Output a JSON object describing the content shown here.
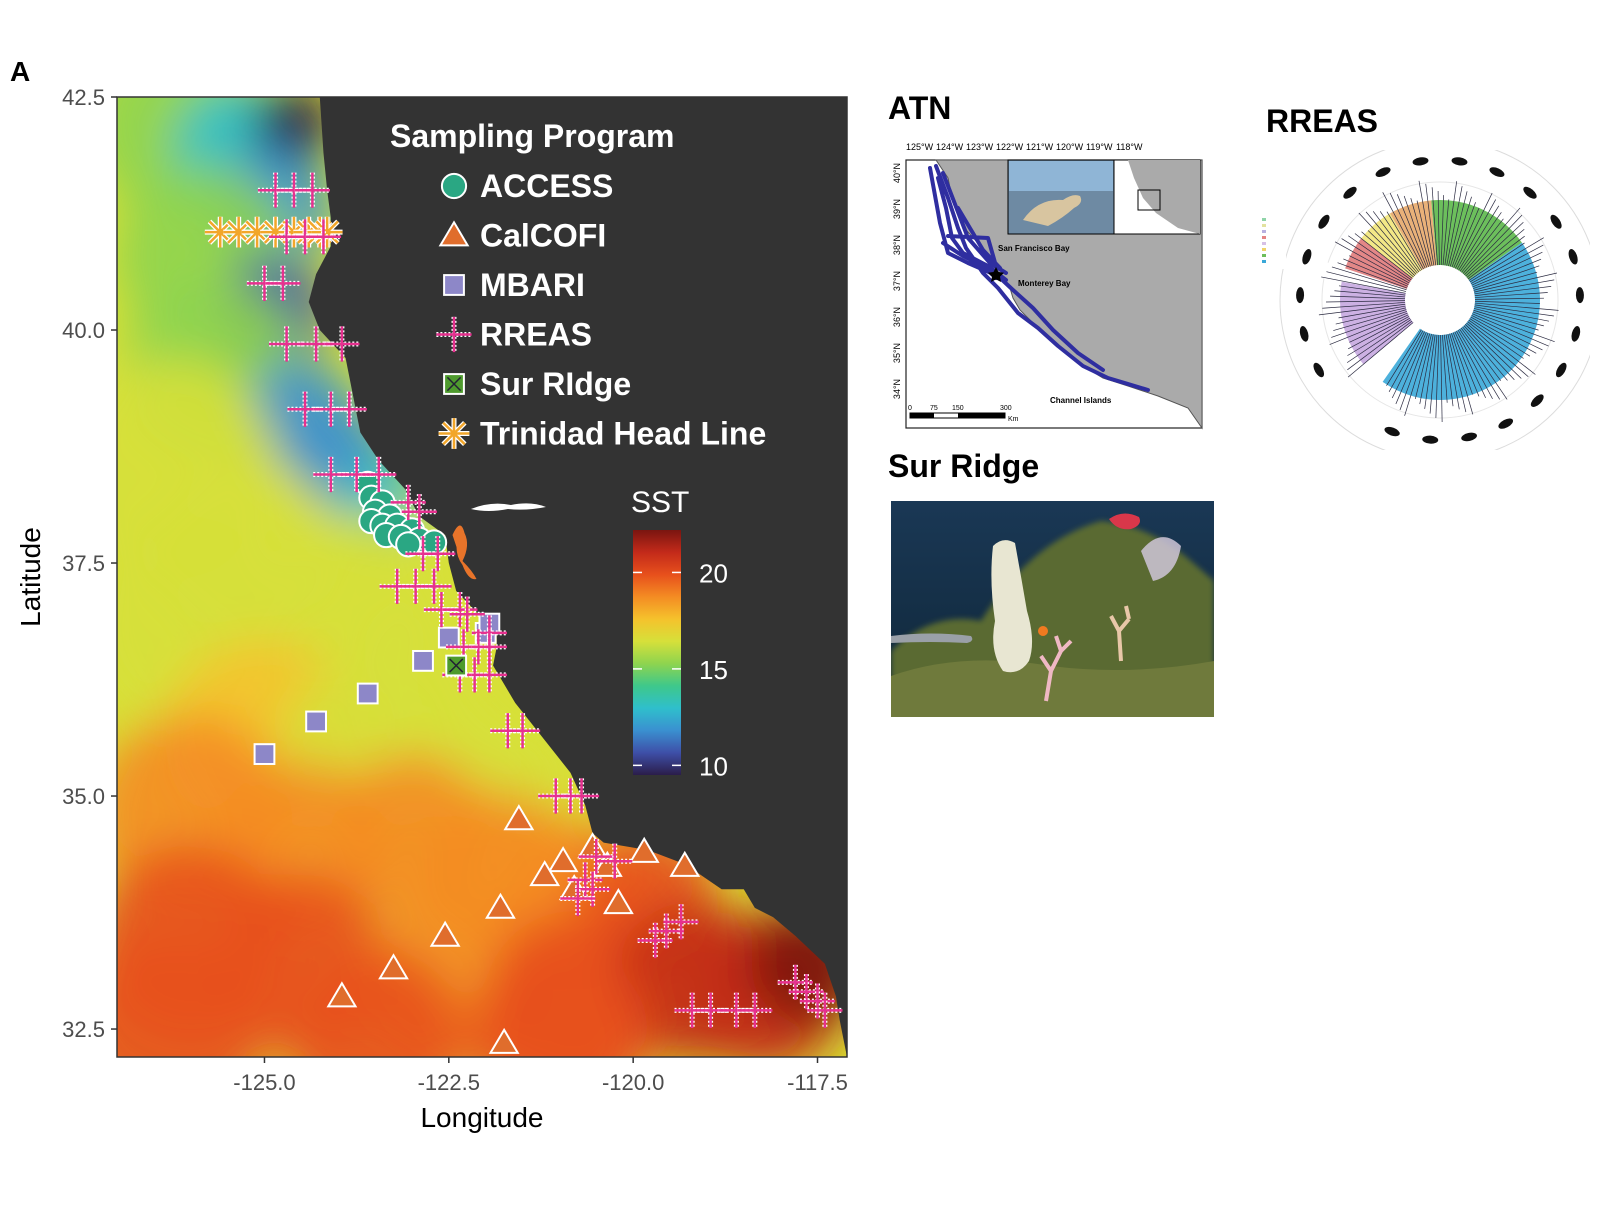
{
  "panel_label": "A",
  "map": {
    "xlabel": "Longitude",
    "ylabel": "Latitude",
    "xlim": [
      -127,
      -117.1
    ],
    "ylim": [
      32.2,
      42.5
    ],
    "x_ticks": [
      {
        "value": -125.0,
        "label": "-125.0"
      },
      {
        "value": -122.5,
        "label": "-122.5"
      },
      {
        "value": -120.0,
        "label": "-120.0"
      },
      {
        "value": -117.5,
        "label": "-117.5"
      }
    ],
    "y_ticks": [
      {
        "value": 42.5,
        "label": "42.5"
      },
      {
        "value": 40.0,
        "label": "40.0"
      },
      {
        "value": 37.5,
        "label": "37.5"
      },
      {
        "value": 35.0,
        "label": "35.0"
      },
      {
        "value": 32.5,
        "label": "32.5"
      }
    ],
    "land_color": "#333333",
    "coastline": [
      [
        -124.25,
        42.5
      ],
      [
        -124.2,
        41.9
      ],
      [
        -124.15,
        41.5
      ],
      [
        -124.1,
        41.2
      ],
      [
        -124.1,
        40.9
      ],
      [
        -124.3,
        40.6
      ],
      [
        -124.4,
        40.3
      ],
      [
        -124.25,
        40.0
      ],
      [
        -123.9,
        39.7
      ],
      [
        -123.8,
        39.3
      ],
      [
        -123.7,
        38.9
      ],
      [
        -123.45,
        38.6
      ],
      [
        -123.1,
        38.3
      ],
      [
        -122.9,
        38.0
      ],
      [
        -122.55,
        37.8
      ],
      [
        -122.5,
        37.5
      ],
      [
        -122.4,
        37.2
      ],
      [
        -122.1,
        36.95
      ],
      [
        -121.85,
        36.75
      ],
      [
        -121.85,
        36.6
      ],
      [
        -121.9,
        36.4
      ],
      [
        -121.6,
        36.0
      ],
      [
        -121.2,
        35.6
      ],
      [
        -120.85,
        35.25
      ],
      [
        -120.65,
        34.9
      ],
      [
        -120.55,
        34.6
      ],
      [
        -120.4,
        34.5
      ],
      [
        -119.8,
        34.42
      ],
      [
        -119.3,
        34.27
      ],
      [
        -118.8,
        34.0
      ],
      [
        -118.5,
        34.0
      ],
      [
        -118.35,
        33.8
      ],
      [
        -118.1,
        33.7
      ],
      [
        -117.8,
        33.5
      ],
      [
        -117.4,
        33.2
      ],
      [
        -117.25,
        32.85
      ],
      [
        -117.2,
        32.6
      ],
      [
        -117.1,
        32.2
      ]
    ],
    "sst_colorbar": {
      "title": "SST",
      "min": 9.5,
      "max": 22.2,
      "ticks": [
        10,
        15,
        20
      ],
      "colors": [
        "#2b1d4a",
        "#3e4fa8",
        "#3a90d0",
        "#2fbfcc",
        "#3ec88b",
        "#8ed44f",
        "#d6e03a",
        "#f5c22c",
        "#f48c23",
        "#e7501c",
        "#c32a1a",
        "#7a1510"
      ]
    },
    "legend": {
      "title": "Sampling Program",
      "items": [
        {
          "label": "ACCESS",
          "shape": "circle",
          "color": "#2aa783"
        },
        {
          "label": "CalCOFI",
          "shape": "triangle",
          "color": "#e06d2c"
        },
        {
          "label": "MBARI",
          "shape": "square",
          "color": "#8d87c8"
        },
        {
          "label": "RREAS",
          "shape": "plus",
          "color": "#e6318f"
        },
        {
          "label": "Sur RIdge",
          "shape": "boxx",
          "color": "#4e9a2d"
        },
        {
          "label": "Trinidad Head Line",
          "shape": "asterisk",
          "color": "#f2a62a"
        }
      ]
    }
  },
  "chart_data": {
    "type": "scatter",
    "xlabel": "Longitude",
    "ylabel": "Latitude",
    "xlim": [
      -127,
      -117.1
    ],
    "ylim": [
      32.2,
      42.5
    ],
    "color_scale_title": "SST",
    "series": [
      {
        "name": "ACCESS",
        "points": [
          [
            -123.6,
            38.35
          ],
          [
            -123.55,
            38.2
          ],
          [
            -123.4,
            38.15
          ],
          [
            -123.5,
            38.05
          ],
          [
            -123.3,
            38.0
          ],
          [
            -123.55,
            37.95
          ],
          [
            -123.4,
            37.9
          ],
          [
            -123.2,
            37.9
          ],
          [
            -123.0,
            37.85
          ],
          [
            -123.35,
            37.8
          ],
          [
            -123.15,
            37.78
          ],
          [
            -122.9,
            37.75
          ],
          [
            -122.7,
            37.72
          ],
          [
            -123.05,
            37.7
          ]
        ]
      },
      {
        "name": "CalCOFI",
        "points": [
          [
            -121.55,
            34.75
          ],
          [
            -120.95,
            34.3
          ],
          [
            -120.55,
            34.45
          ],
          [
            -121.2,
            34.15
          ],
          [
            -120.8,
            34.0
          ],
          [
            -120.35,
            34.25
          ],
          [
            -119.85,
            34.4
          ],
          [
            -119.3,
            34.25
          ],
          [
            -120.2,
            33.85
          ],
          [
            -121.8,
            33.8
          ],
          [
            -122.55,
            33.5
          ],
          [
            -123.25,
            33.15
          ],
          [
            -123.95,
            32.85
          ],
          [
            -121.75,
            32.35
          ]
        ]
      },
      {
        "name": "MBARI",
        "points": [
          [
            -125.0,
            35.45
          ],
          [
            -124.3,
            35.8
          ],
          [
            -123.6,
            36.1
          ],
          [
            -122.85,
            36.45
          ],
          [
            -122.5,
            36.7
          ],
          [
            -122.0,
            36.75
          ],
          [
            -121.95,
            36.85
          ]
        ]
      },
      {
        "name": "RREAS",
        "points": [
          [
            -124.85,
            41.5
          ],
          [
            -124.6,
            41.5
          ],
          [
            -124.35,
            41.5
          ],
          [
            -124.7,
            41.0
          ],
          [
            -124.45,
            41.0
          ],
          [
            -124.2,
            41.0
          ],
          [
            -125.0,
            40.5
          ],
          [
            -124.75,
            40.5
          ],
          [
            -124.7,
            39.85
          ],
          [
            -124.3,
            39.85
          ],
          [
            -123.95,
            39.85
          ],
          [
            -124.45,
            39.15
          ],
          [
            -124.1,
            39.15
          ],
          [
            -123.85,
            39.15
          ],
          [
            -124.1,
            38.45
          ],
          [
            -123.75,
            38.45
          ],
          [
            -123.45,
            38.45
          ],
          [
            -123.05,
            38.15
          ],
          [
            -122.9,
            38.05
          ],
          [
            -122.85,
            37.6
          ],
          [
            -122.65,
            37.6
          ],
          [
            -123.2,
            37.25
          ],
          [
            -122.95,
            37.25
          ],
          [
            -122.7,
            37.25
          ],
          [
            -122.6,
            37.0
          ],
          [
            -122.35,
            37.0
          ],
          [
            -122.25,
            36.95
          ],
          [
            -121.95,
            36.75
          ],
          [
            -122.3,
            36.6
          ],
          [
            -122.1,
            36.6
          ],
          [
            -121.95,
            36.6
          ],
          [
            -122.35,
            36.3
          ],
          [
            -122.15,
            36.3
          ],
          [
            -121.95,
            36.3
          ],
          [
            -121.7,
            35.7
          ],
          [
            -121.5,
            35.7
          ],
          [
            -121.05,
            35.0
          ],
          [
            -120.85,
            35.0
          ],
          [
            -120.7,
            35.0
          ],
          [
            -120.5,
            34.35
          ],
          [
            -120.25,
            34.3
          ],
          [
            -120.65,
            34.1
          ],
          [
            -120.55,
            34.0
          ],
          [
            -120.75,
            33.9
          ],
          [
            -119.7,
            33.45
          ],
          [
            -119.55,
            33.55
          ],
          [
            -119.35,
            33.65
          ],
          [
            -119.2,
            32.7
          ],
          [
            -118.95,
            32.7
          ],
          [
            -118.6,
            32.7
          ],
          [
            -118.35,
            32.7
          ],
          [
            -117.8,
            33.0
          ],
          [
            -117.65,
            32.9
          ],
          [
            -117.5,
            32.8
          ],
          [
            -117.4,
            32.7
          ]
        ]
      },
      {
        "name": "Sur RIdge",
        "points": [
          [
            -122.4,
            36.4
          ]
        ]
      },
      {
        "name": "Trinidad Head Line",
        "points": [
          [
            -125.6,
            41.05
          ],
          [
            -125.35,
            41.05
          ],
          [
            -125.1,
            41.05
          ],
          [
            -124.85,
            41.05
          ],
          [
            -124.6,
            41.05
          ],
          [
            -124.4,
            41.05
          ],
          [
            -124.25,
            41.05
          ],
          [
            -124.15,
            41.05
          ]
        ]
      }
    ]
  },
  "insets": {
    "atn": {
      "title": "ATN",
      "lon_labels": [
        "125°W",
        "124°W",
        "123°W",
        "122°W",
        "121°W",
        "120°W",
        "119°W",
        "118°W"
      ],
      "lat_labels": [
        "40°N",
        "39°N",
        "38°N",
        "37°N",
        "36°N",
        "35°N",
        "34°N"
      ],
      "places": {
        "sf": "San Francisco Bay",
        "monterey": "Monterey Bay",
        "channel": "Channel Islands"
      },
      "scale_labels": [
        "0",
        "75",
        "150",
        "300"
      ],
      "scale_unit": "Km"
    },
    "rreas": {
      "title": "RREAS"
    },
    "sur": {
      "title": "Sur Ridge"
    }
  }
}
